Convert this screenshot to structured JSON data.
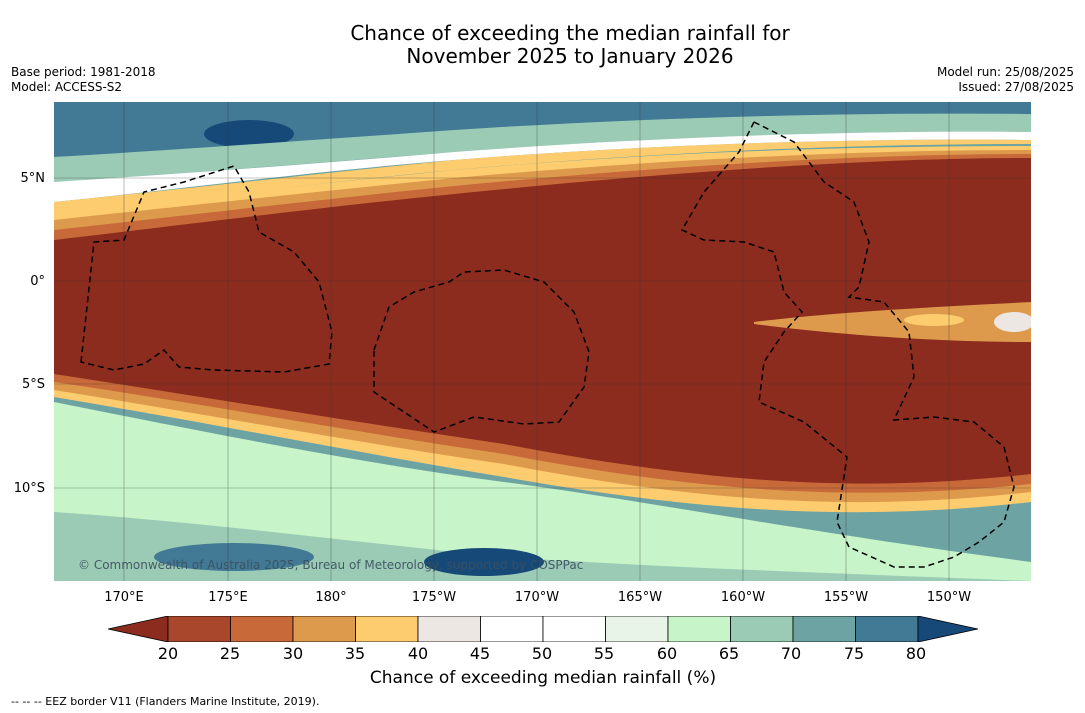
{
  "title": {
    "line1": "Chance of exceeding the median rainfall for",
    "line2": "November 2025 to January 2026"
  },
  "meta": {
    "base_period": "Base period: 1981-2018",
    "model": "Model: ACCESS-S2",
    "model_run": "Model run: 25/08/2025",
    "issued": "Issued: 27/08/2025"
  },
  "map": {
    "latitude_labels": [
      "5°N",
      "0°",
      "5°S",
      "10°S"
    ],
    "longitude_labels": [
      "170°E",
      "175°E",
      "180°",
      "175°W",
      "170°W",
      "165°W",
      "160°W",
      "155°W",
      "150°W"
    ],
    "copyright": "© Commonwealth of Australia 2025, Bureau of Meteorology, supported by COSPPac"
  },
  "colorbar": {
    "ticks": [
      "20",
      "25",
      "30",
      "35",
      "40",
      "45",
      "50",
      "55",
      "60",
      "65",
      "70",
      "75",
      "80"
    ],
    "label": "Chance of exceeding median rainfall (%)",
    "colors": [
      "#8c2c1e",
      "#a8472c",
      "#c8693a",
      "#de9a4c",
      "#fccc6e",
      "#ede7e4",
      "#ffffff",
      "#ffffff",
      "#e9f4e8",
      "#c7f5c9",
      "#9bcbb5",
      "#6ea3a3",
      "#427a96",
      "#174978"
    ]
  },
  "legend": {
    "eez": "--  --  -- EEZ border V11 (Flanders Marine Institute, 2019)."
  }
}
